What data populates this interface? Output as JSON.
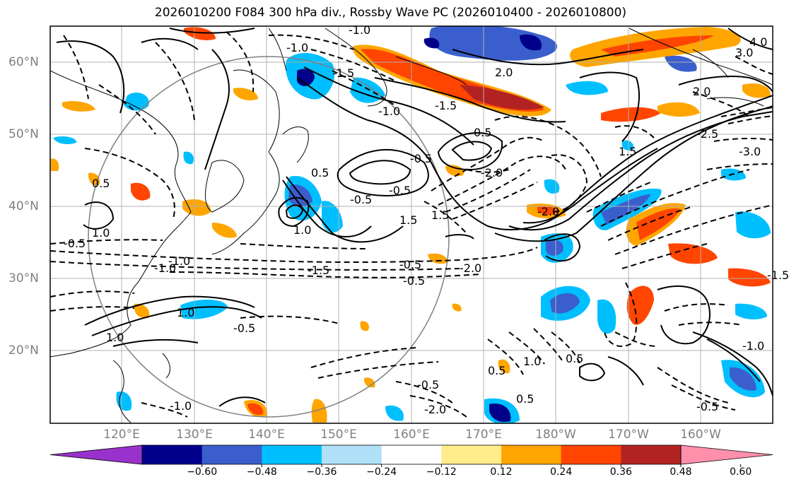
{
  "title": "2026010200 F084 300 hPa div., Rossby Wave PC (2026010400 - 2026010800)",
  "lat_labels": [
    "60°N",
    "50°N",
    "40°N",
    "30°N",
    "20°N"
  ],
  "lon_labels": [
    "120°E",
    "130°E",
    "140°E",
    "150°E",
    "160°E",
    "170°E",
    "180°W",
    "170°W",
    "160°W"
  ],
  "colorbar": {
    "ticks": [
      "−0.60",
      "−0.48",
      "−0.36",
      "−0.24",
      "−0.12",
      "0.12",
      "0.24",
      "0.36",
      "0.48",
      "0.60"
    ],
    "colors": [
      "#9932cc",
      "#00008b",
      "#3a5fcd",
      "#00bfff",
      "#b0e0f8",
      "#ffffff",
      "#ffec8b",
      "#ffa500",
      "#ff4500",
      "#b22222",
      "#ff8fab"
    ]
  },
  "contour_labels": [
    "-1.0",
    "-1.0",
    "-1.0",
    "-1.0",
    "-1.5",
    "-2.0",
    "2.0",
    "3.0",
    "4.0",
    "-0.5",
    "-0.5",
    "-1.5",
    "-2.5",
    "-3.0",
    "-2.0",
    "1.5",
    "1.0",
    "-0.5",
    "0.5",
    "0.5",
    "-0.5",
    "-1.0",
    "-1.5",
    "-2.0",
    "0.5",
    "1.0",
    "1.5",
    "-0.5",
    "1.0",
    "1.0",
    "-1.0",
    "-1.5",
    "-0.5",
    "0.5",
    "1.0",
    "-0.5",
    "-1.0",
    "-2.0",
    "0.5",
    "-0.5",
    "-0.5",
    "0.5",
    "1.5",
    "2.0"
  ],
  "colors": {
    "frame": "#000000",
    "grid": "#b0b0b0",
    "axis_text": "#808080"
  }
}
